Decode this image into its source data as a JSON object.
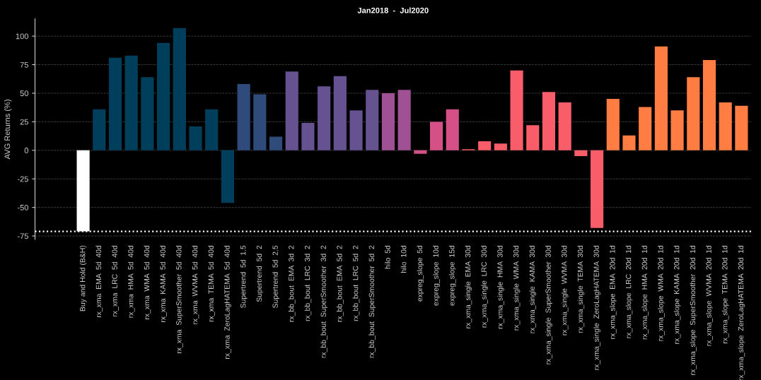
{
  "chart_data": {
    "type": "bar",
    "title": "Jan2018  -  Jul2020",
    "ylabel": "AVG Returns (%)",
    "categories": [
      "Buy and Hold (B&H)",
      "rx_xma  EMA  5d  40d",
      "rx_xma  LRC  5d  40d",
      "rx_xma  HMA  5d  40d",
      "rx_xma  WMA  5d  40d",
      "rx_xma  KAMA  5d  40d",
      "rx_xma  SuperSmoother  5d  40d",
      "rx_xma  WVMA  5d  40d",
      "rx_xma  TEMA  5d  40d",
      "rx_xma  ZeroLagHATEMA  5d  40d",
      "Supertrend  5d  1.5",
      "Supertrend  5d  2",
      "Supertrend  5d  2.5",
      "rx_bb_bout  EMA  3d  2",
      "rx_bb_bout  LRC  3d  2",
      "rx_bb_bout  SuperSmoother  3d  2",
      "rx_bb_bout  EMA  5d  2",
      "rx_bb_bout  LRC  5d  2",
      "rx_bb_bout  SuperSmoother  5d  2",
      "hilo  5d",
      "hilo  10d",
      "expreg_slope  5d",
      "expreg_slope  10d",
      "expreg_slope  15d",
      "rx_xma_single  EMA  30d",
      "rx_xma_single  LRC  30d",
      "rx_xma_single  HMA  30d",
      "rx_xma_single  WMA  30d",
      "rx_xma_single  KAMA  30d",
      "rx_xma_single  SuperSmoother  30d",
      "rx_xma_single  WVMA  30d",
      "rx_xma_single  TEMA  30d",
      "rx_xma_single  ZeroLagHATEMA  30d",
      "rx_xma_slope  EMA  20d  1d",
      "rx_xma_slope  LRC  20d  1d",
      "rx_xma_slope  HMA  20d  1d",
      "rx_xma_slope  WMA  20d  1d",
      "rx_xma_slope  KAMA  20d  1d",
      "rx_xma_slope  SuperSmoother  20d  1d",
      "rx_xma_slope  WVMA  20d  1d",
      "rx_xma_slope  TEMA  20d  1d",
      "rx_xma_slope  ZeroLagHATEMA  20d  1d"
    ],
    "values": [
      -71,
      36,
      81,
      83,
      64,
      94,
      107,
      21,
      36,
      -46,
      58,
      49,
      12,
      69,
      24,
      56,
      65,
      35,
      53,
      50,
      53,
      -3,
      25,
      36,
      1,
      8,
      6,
      70,
      22,
      51,
      42,
      -5,
      -68,
      45,
      13,
      38,
      91,
      35,
      64,
      79,
      42,
      39
    ],
    "colors": [
      "#ffffff",
      "#003f5c",
      "#003f5c",
      "#003f5c",
      "#003f5c",
      "#003f5c",
      "#003f5c",
      "#003f5c",
      "#003f5c",
      "#003f5c",
      "#2f4b7c",
      "#2f4b7c",
      "#2f4b7c",
      "#665191",
      "#665191",
      "#665191",
      "#665191",
      "#665191",
      "#665191",
      "#a05195",
      "#a05195",
      "#d45087",
      "#d45087",
      "#d45087",
      "#f95d6a",
      "#f95d6a",
      "#f95d6a",
      "#f95d6a",
      "#f95d6a",
      "#f95d6a",
      "#f95d6a",
      "#f95d6a",
      "#f95d6a",
      "#ff7c43",
      "#ff7c43",
      "#ff7c43",
      "#ff7c43",
      "#ff7c43",
      "#ff7c43",
      "#ff7c43",
      "#ff7c43",
      "#ff7c43"
    ],
    "ylim": [
      -78,
      115
    ],
    "yticks": [
      -75,
      -50,
      -25,
      0,
      25,
      50,
      75,
      100
    ],
    "ref_lines": [
      {
        "axis": "y",
        "value": -71,
        "color": "#ffffff",
        "line_style": "dotted"
      }
    ],
    "grid": "y",
    "legend": false
  }
}
